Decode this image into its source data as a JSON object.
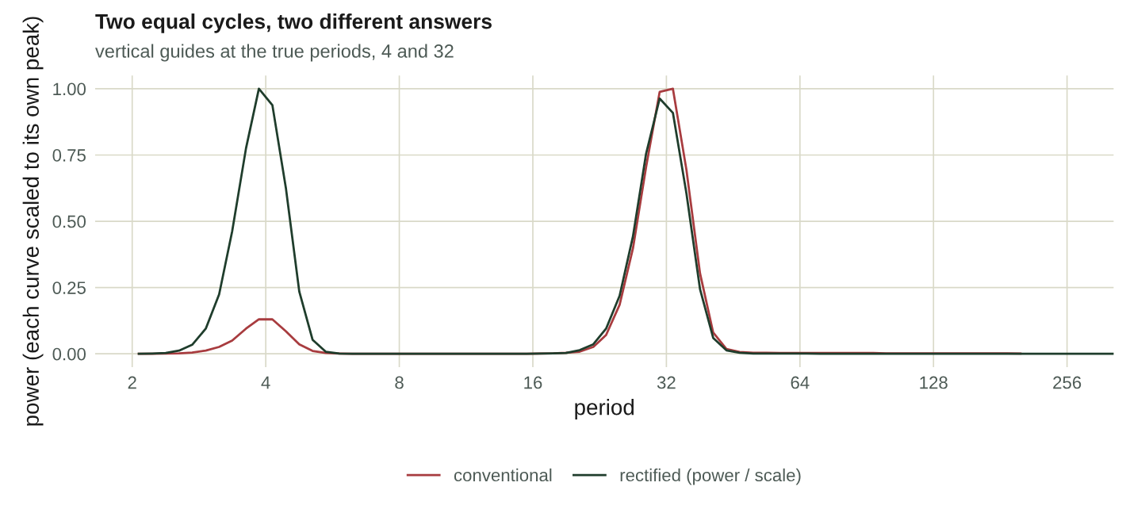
{
  "chart_data": {
    "type": "line",
    "title": "Two equal cycles, two different answers",
    "subtitle": "vertical guides at the true periods, 4 and 32",
    "xlabel": "period",
    "ylabel": "power (each curve scaled to its own peak)",
    "log": "x",
    "xlim": [
      1.65,
      326
    ],
    "xticks": [
      2,
      4,
      8,
      16,
      32,
      64,
      128,
      256
    ],
    "ylim": [
      -0.05,
      1.05
    ],
    "yticks": [
      {
        "value": 0,
        "label": "0.00"
      },
      {
        "value": 0.25,
        "label": "0.25"
      },
      {
        "value": 0.5,
        "label": "0.50"
      },
      {
        "value": 0.75,
        "label": "0.75"
      },
      {
        "value": 1,
        "label": "1.00"
      }
    ],
    "grid": true,
    "legend": "bottom",
    "line_style": "solid",
    "marker": "none",
    "x": [
      2.07,
      2.22,
      2.38,
      2.55,
      2.73,
      2.93,
      3.14,
      3.36,
      3.61,
      3.86,
      4.14,
      4.44,
      4.76,
      5.1,
      5.46,
      5.86,
      6.28,
      6.73,
      7.21,
      7.73,
      8.28,
      8.88,
      9.51,
      10.2,
      10.9,
      11.7,
      12.6,
      13.5,
      14.4,
      15.5,
      16.6,
      17.8,
      19.0,
      20.4,
      21.9,
      23.4,
      25.1,
      26.9,
      28.8,
      30.9,
      33.1,
      35.5,
      38.1,
      40.8,
      43.7,
      46.8,
      50.2,
      53.8,
      57.7,
      61.8,
      66.3,
      71.0,
      76.1,
      81.6,
      87.4,
      93.7,
      100,
      108,
      115,
      124,
      133,
      142,
      152,
      163,
      175,
      187,
      201,
      215,
      231,
      247,
      265,
      284,
      304,
      326
    ],
    "series": [
      {
        "name": "conventional",
        "color": "#a83c3f",
        "values": [
          0,
          0,
          0.001,
          0.002,
          0.005,
          0.012,
          0.026,
          0.05,
          0.095,
          0.13,
          0.13,
          0.085,
          0.036,
          0.011,
          0.003,
          0.001,
          0,
          0,
          0,
          0,
          0,
          0,
          0,
          0,
          0,
          0,
          0,
          0,
          0,
          0,
          0.001,
          0.002,
          0.004,
          0.008,
          0.026,
          0.071,
          0.185,
          0.398,
          0.705,
          0.988,
          1.0,
          0.695,
          0.304,
          0.08,
          0.018,
          0.007,
          0.004,
          0.004,
          0.003,
          0.003,
          0.003,
          0.003,
          0.003,
          0.003,
          0.003,
          0.003,
          0.002,
          0.002,
          0.002,
          0.002,
          0.002,
          0.002,
          0.002,
          0.002,
          0.002,
          0.002,
          0.001,
          null,
          null,
          null,
          null,
          null,
          null,
          null
        ]
      },
      {
        "name": "rectified (power / scale)",
        "color": "#1f3d2c",
        "values": [
          0,
          0.001,
          0.003,
          0.012,
          0.034,
          0.095,
          0.224,
          0.462,
          0.775,
          1.0,
          0.938,
          0.626,
          0.235,
          0.053,
          0.008,
          0.001,
          0,
          0,
          0,
          0,
          0,
          0,
          0,
          0,
          0,
          0,
          0,
          0,
          0,
          0,
          0.001,
          0.002,
          0.003,
          0.014,
          0.036,
          0.095,
          0.219,
          0.443,
          0.755,
          0.963,
          0.909,
          0.606,
          0.244,
          0.06,
          0.013,
          0.004,
          0.001,
          0.001,
          0.001,
          0.001,
          0.001,
          0,
          0,
          0,
          0,
          0,
          0,
          0,
          0,
          0,
          0,
          0,
          0,
          0,
          0,
          0,
          0,
          0,
          0,
          0,
          0,
          0,
          0,
          0
        ]
      }
    ]
  }
}
